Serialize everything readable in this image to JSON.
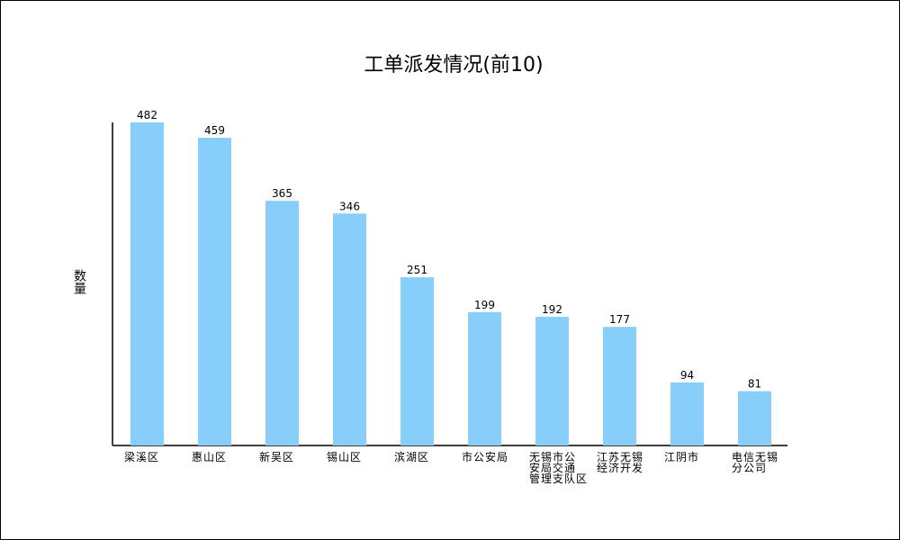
{
  "chart_data": {
    "type": "bar",
    "title": "工单派发情况(前10)",
    "xlabel": "",
    "ylabel": "数量",
    "ylim": [
      0,
      482
    ],
    "grid": false,
    "bar_color": "#87CEFA",
    "categories": [
      [
        "梁溪区"
      ],
      [
        "惠山区"
      ],
      [
        "新吴区"
      ],
      [
        "锡山区"
      ],
      [
        "滨湖区"
      ],
      [
        "市公安局"
      ],
      [
        "无锡市公",
        "安局交通",
        "管理支队区"
      ],
      [
        "江苏无锡",
        "经济开发"
      ],
      [
        "江阴市"
      ],
      [
        "电信无锡",
        "分公司"
      ]
    ],
    "values": [
      482,
      459,
      365,
      346,
      251,
      199,
      192,
      177,
      94,
      81
    ]
  }
}
